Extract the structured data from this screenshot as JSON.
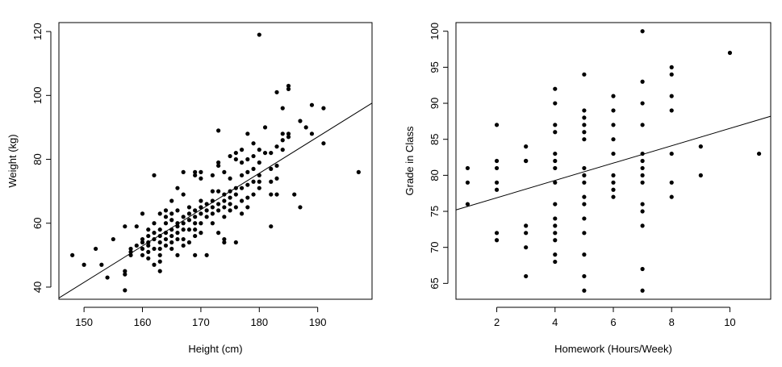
{
  "chart_data": [
    {
      "type": "scatter",
      "title": "",
      "xlabel": "Height (cm)",
      "ylabel": "Weight (kg)",
      "xlim": [
        145.7,
        199.3
      ],
      "ylim": [
        36.2,
        122.8
      ],
      "x_ticks": [
        150,
        160,
        170,
        180,
        190
      ],
      "y_ticks": [
        40,
        60,
        80,
        100,
        120
      ],
      "grid": false,
      "legend": "none",
      "fit_line": {
        "x": [
          145.7,
          199.3
        ],
        "y": [
          36.6,
          97.6
        ]
      },
      "points": [
        [
          148,
          50
        ],
        [
          150,
          47
        ],
        [
          152,
          52
        ],
        [
          153,
          47
        ],
        [
          154,
          43
        ],
        [
          155,
          55
        ],
        [
          157,
          45
        ],
        [
          157,
          44
        ],
        [
          157,
          59
        ],
        [
          157,
          39
        ],
        [
          158,
          52
        ],
        [
          158,
          51
        ],
        [
          158,
          50
        ],
        [
          159,
          53
        ],
        [
          159,
          59
        ],
        [
          160,
          55
        ],
        [
          160,
          54
        ],
        [
          160,
          52
        ],
        [
          160,
          50
        ],
        [
          160,
          63
        ],
        [
          161,
          56
        ],
        [
          161,
          54
        ],
        [
          161,
          53
        ],
        [
          161,
          51
        ],
        [
          161,
          49
        ],
        [
          161,
          58
        ],
        [
          162,
          55
        ],
        [
          162,
          57
        ],
        [
          162,
          52
        ],
        [
          162,
          47
        ],
        [
          162,
          75
        ],
        [
          162,
          60
        ],
        [
          163,
          56
        ],
        [
          163,
          54
        ],
        [
          163,
          52
        ],
        [
          163,
          50
        ],
        [
          163,
          48
        ],
        [
          163,
          45
        ],
        [
          163,
          58
        ],
        [
          163,
          63
        ],
        [
          164,
          57
        ],
        [
          164,
          55
        ],
        [
          164,
          53
        ],
        [
          164,
          60
        ],
        [
          164,
          62
        ],
        [
          164,
          64
        ],
        [
          165,
          58
        ],
        [
          165,
          56
        ],
        [
          165,
          54
        ],
        [
          165,
          52
        ],
        [
          165,
          61
        ],
        [
          165,
          63
        ],
        [
          165,
          67
        ],
        [
          166,
          59
        ],
        [
          166,
          57
        ],
        [
          166,
          55
        ],
        [
          166,
          60
        ],
        [
          166,
          50
        ],
        [
          166,
          64
        ],
        [
          166,
          71
        ],
        [
          167,
          60
        ],
        [
          167,
          58
        ],
        [
          167,
          62
        ],
        [
          167,
          55
        ],
        [
          167,
          53
        ],
        [
          167,
          69
        ],
        [
          167,
          76
        ],
        [
          168,
          61
        ],
        [
          168,
          63
        ],
        [
          168,
          58
        ],
        [
          168,
          54
        ],
        [
          168,
          65
        ],
        [
          169,
          62
        ],
        [
          169,
          60
        ],
        [
          169,
          58
        ],
        [
          169,
          64
        ],
        [
          169,
          56
        ],
        [
          169,
          75
        ],
        [
          169,
          76
        ],
        [
          169,
          50
        ],
        [
          170,
          63
        ],
        [
          170,
          65
        ],
        [
          170,
          60
        ],
        [
          170,
          67
        ],
        [
          170,
          57
        ],
        [
          170,
          76
        ],
        [
          170,
          74
        ],
        [
          171,
          64
        ],
        [
          171,
          62
        ],
        [
          171,
          66
        ],
        [
          171,
          50
        ],
        [
          172,
          65
        ],
        [
          172,
          63
        ],
        [
          172,
          67
        ],
        [
          172,
          60
        ],
        [
          172,
          70
        ],
        [
          172,
          75
        ],
        [
          173,
          66
        ],
        [
          173,
          64
        ],
        [
          173,
          57
        ],
        [
          173,
          70
        ],
        [
          173,
          79
        ],
        [
          173,
          78
        ],
        [
          173,
          89
        ],
        [
          174,
          67
        ],
        [
          174,
          65
        ],
        [
          174,
          69
        ],
        [
          174,
          62
        ],
        [
          174,
          55
        ],
        [
          174,
          54
        ],
        [
          174,
          76
        ],
        [
          175,
          68
        ],
        [
          175,
          66
        ],
        [
          175,
          70
        ],
        [
          175,
          64
        ],
        [
          175,
          81
        ],
        [
          175,
          74
        ],
        [
          176,
          69
        ],
        [
          176,
          65
        ],
        [
          176,
          71
        ],
        [
          176,
          82
        ],
        [
          176,
          80
        ],
        [
          176,
          54
        ],
        [
          177,
          67
        ],
        [
          177,
          71
        ],
        [
          177,
          75
        ],
        [
          177,
          79
        ],
        [
          177,
          83
        ],
        [
          177,
          63
        ],
        [
          178,
          68
        ],
        [
          178,
          72
        ],
        [
          178,
          76
        ],
        [
          178,
          80
        ],
        [
          178,
          65
        ],
        [
          178,
          88
        ],
        [
          179,
          69
        ],
        [
          179,
          73
        ],
        [
          179,
          77
        ],
        [
          179,
          81
        ],
        [
          179,
          85
        ],
        [
          180,
          71
        ],
        [
          180,
          75
        ],
        [
          180,
          79
        ],
        [
          180,
          83
        ],
        [
          180,
          119
        ],
        [
          180,
          73
        ],
        [
          181,
          82
        ],
        [
          181,
          90
        ],
        [
          182,
          73
        ],
        [
          182,
          77
        ],
        [
          182,
          82
        ],
        [
          182,
          59
        ],
        [
          182,
          69
        ],
        [
          183,
          74
        ],
        [
          183,
          78
        ],
        [
          183,
          101
        ],
        [
          183,
          84
        ],
        [
          183,
          69
        ],
        [
          184,
          83
        ],
        [
          184,
          88
        ],
        [
          184,
          96
        ],
        [
          184,
          86
        ],
        [
          185,
          102
        ],
        [
          185,
          103
        ],
        [
          185,
          88
        ],
        [
          185,
          87
        ],
        [
          186,
          69
        ],
        [
          187,
          65
        ],
        [
          187,
          92
        ],
        [
          188,
          90
        ],
        [
          189,
          97
        ],
        [
          189,
          88
        ],
        [
          191,
          96
        ],
        [
          191,
          85
        ],
        [
          197,
          76
        ]
      ]
    },
    {
      "type": "scatter",
      "title": "",
      "xlabel": "Homework (Hours/Week)",
      "ylabel": "Grade in Class",
      "xlim": [
        0.6,
        11.4
      ],
      "ylim": [
        62.8,
        101.2
      ],
      "x_ticks": [
        2,
        4,
        6,
        8,
        10
      ],
      "y_ticks": [
        65,
        70,
        75,
        80,
        85,
        90,
        95,
        100
      ],
      "grid": false,
      "legend": "none",
      "fit_line": {
        "x": [
          0.6,
          11.4
        ],
        "y": [
          75.2,
          88.2
        ]
      },
      "points": [
        [
          1,
          81
        ],
        [
          1,
          79
        ],
        [
          1,
          76
        ],
        [
          2,
          87
        ],
        [
          2,
          82
        ],
        [
          2,
          81
        ],
        [
          2,
          79
        ],
        [
          2,
          78
        ],
        [
          2,
          72
        ],
        [
          2,
          71
        ],
        [
          3,
          84
        ],
        [
          3,
          82
        ],
        [
          3,
          82
        ],
        [
          3,
          73
        ],
        [
          3,
          72
        ],
        [
          3,
          70
        ],
        [
          3,
          66
        ],
        [
          4,
          92
        ],
        [
          4,
          90
        ],
        [
          4,
          87
        ],
        [
          4,
          86
        ],
        [
          4,
          83
        ],
        [
          4,
          82
        ],
        [
          4,
          81
        ],
        [
          4,
          79
        ],
        [
          4,
          76
        ],
        [
          4,
          74
        ],
        [
          4,
          73
        ],
        [
          4,
          72
        ],
        [
          4,
          71
        ],
        [
          4,
          69
        ],
        [
          4,
          68
        ],
        [
          5,
          94
        ],
        [
          5,
          89
        ],
        [
          5,
          88
        ],
        [
          5,
          87
        ],
        [
          5,
          86
        ],
        [
          5,
          85
        ],
        [
          5,
          81
        ],
        [
          5,
          80
        ],
        [
          5,
          79
        ],
        [
          5,
          77
        ],
        [
          5,
          76
        ],
        [
          5,
          74
        ],
        [
          5,
          72
        ],
        [
          5,
          69
        ],
        [
          5,
          66
        ],
        [
          5,
          64
        ],
        [
          6,
          91
        ],
        [
          6,
          89
        ],
        [
          6,
          87
        ],
        [
          6,
          85
        ],
        [
          6,
          83
        ],
        [
          6,
          80
        ],
        [
          6,
          79
        ],
        [
          6,
          78
        ],
        [
          6,
          77
        ],
        [
          7,
          100
        ],
        [
          7,
          93
        ],
        [
          7,
          90
        ],
        [
          7,
          87
        ],
        [
          7,
          83
        ],
        [
          7,
          82
        ],
        [
          7,
          81
        ],
        [
          7,
          80
        ],
        [
          7,
          79
        ],
        [
          7,
          76
        ],
        [
          7,
          75
        ],
        [
          7,
          73
        ],
        [
          7,
          67
        ],
        [
          7,
          64
        ],
        [
          8,
          95
        ],
        [
          8,
          94
        ],
        [
          8,
          91
        ],
        [
          8,
          89
        ],
        [
          8,
          83
        ],
        [
          8,
          79
        ],
        [
          8,
          77
        ],
        [
          9,
          84
        ],
        [
          9,
          80
        ],
        [
          10,
          97
        ],
        [
          11,
          83
        ]
      ]
    }
  ]
}
